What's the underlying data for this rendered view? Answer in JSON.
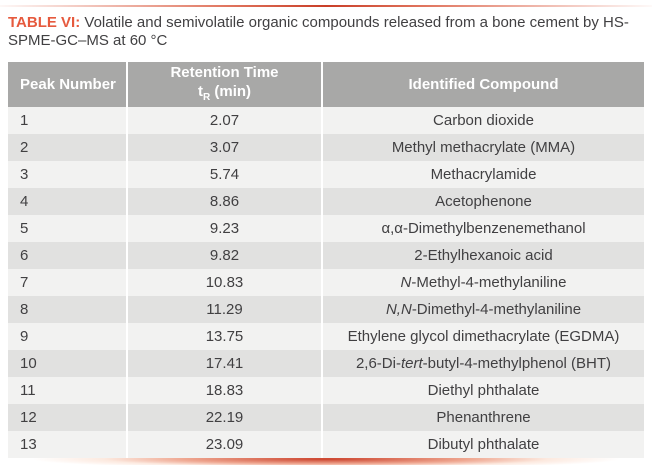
{
  "caption": {
    "label": "TABLE VI:",
    "text": " Volatile and semivolatile organic compounds released from a bone cement by HS-SPME-GC–MS at 60 °C"
  },
  "colors": {
    "accent": "#E65A3E",
    "header_bg": "#A8A8A7",
    "row_light": "#F2F2F1",
    "row_dark": "#E1E1E0",
    "body_text": "#414042"
  },
  "table": {
    "columns": [
      {
        "label": "Peak Number"
      },
      {
        "line1": "Retention Time",
        "symbol": "t",
        "symbol_sub": "R",
        "unit": " (min)"
      },
      {
        "label": "Identified Compound"
      }
    ],
    "rows": [
      {
        "peak": "1",
        "retention_time": "2.07",
        "compound": [
          {
            "text": "Carbon dioxide"
          }
        ]
      },
      {
        "peak": "2",
        "retention_time": "3.07",
        "compound": [
          {
            "text": "Methyl methacrylate (MMA)"
          }
        ]
      },
      {
        "peak": "3",
        "retention_time": "5.74",
        "compound": [
          {
            "text": "Methacrylamide"
          }
        ]
      },
      {
        "peak": "4",
        "retention_time": "8.86",
        "compound": [
          {
            "text": "Acetophenone"
          }
        ]
      },
      {
        "peak": "5",
        "retention_time": "9.23",
        "compound": [
          {
            "text": "α,α-Dimethylbenzenemethanol"
          }
        ]
      },
      {
        "peak": "6",
        "retention_time": "9.82",
        "compound": [
          {
            "text": "2-Ethylhexanoic acid"
          }
        ]
      },
      {
        "peak": "7",
        "retention_time": "10.83",
        "compound": [
          {
            "text": "N",
            "italic": true
          },
          {
            "text": "-Methyl-4-methylaniline"
          }
        ]
      },
      {
        "peak": "8",
        "retention_time": "11.29",
        "compound": [
          {
            "text": "N,N",
            "italic": true
          },
          {
            "text": "-Dimethyl-4-methylaniline"
          }
        ]
      },
      {
        "peak": "9",
        "retention_time": "13.75",
        "compound": [
          {
            "text": "Ethylene glycol dimethacrylate (EGDMA)"
          }
        ]
      },
      {
        "peak": "10",
        "retention_time": "17.41",
        "compound": [
          {
            "text": "2,6-Di-"
          },
          {
            "text": "tert",
            "italic": true
          },
          {
            "text": "-butyl-4-methylphenol (BHT)"
          }
        ]
      },
      {
        "peak": "11",
        "retention_time": "18.83",
        "compound": [
          {
            "text": "Diethyl phthalate"
          }
        ]
      },
      {
        "peak": "12",
        "retention_time": "22.19",
        "compound": [
          {
            "text": "Phenanthrene"
          }
        ]
      },
      {
        "peak": "13",
        "retention_time": "23.09",
        "compound": [
          {
            "text": "Dibutyl phthalate"
          }
        ]
      }
    ]
  }
}
